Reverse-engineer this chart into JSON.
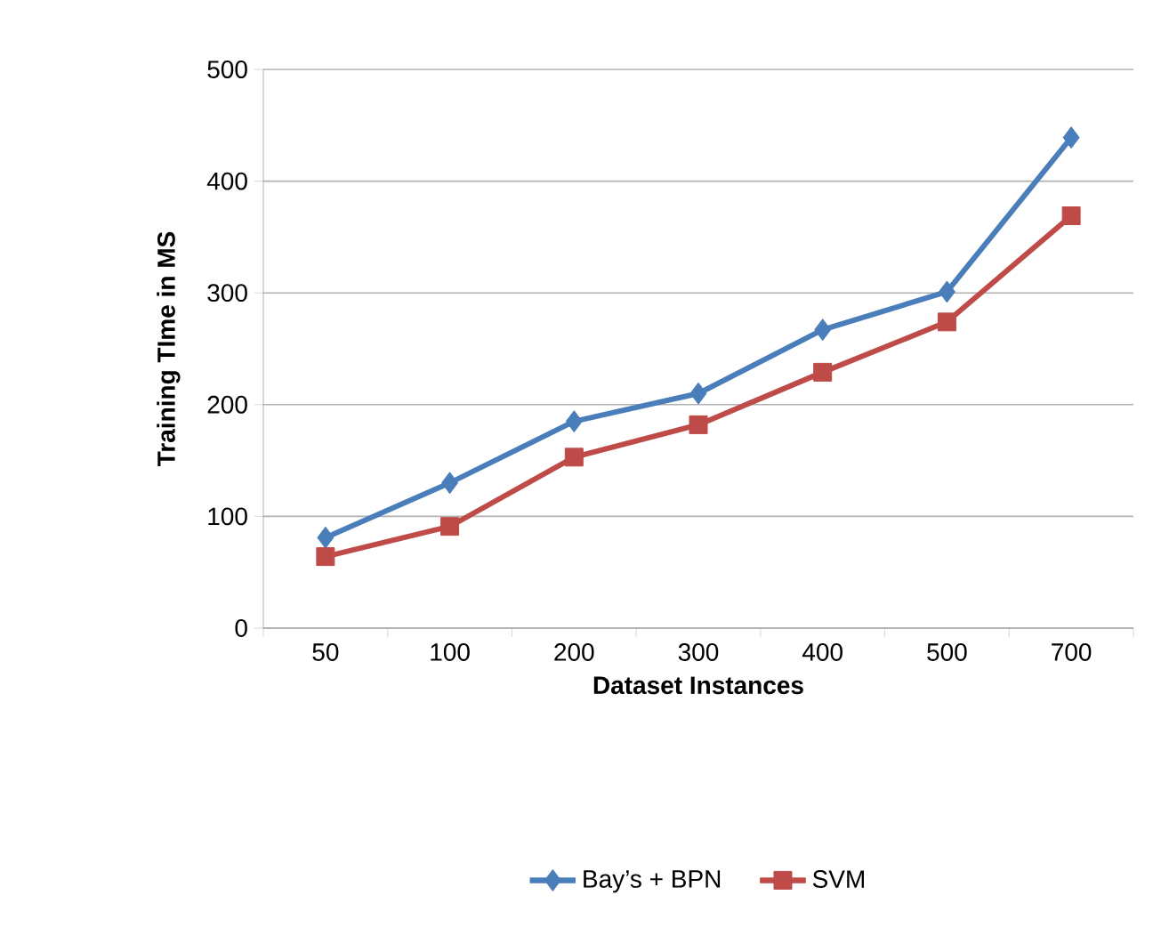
{
  "chart_data": {
    "type": "line",
    "xlabel": "Dataset Instances",
    "ylabel": "Training TIme in MS",
    "categories": [
      "50",
      "100",
      "200",
      "300",
      "400",
      "500",
      "700"
    ],
    "series": [
      {
        "name": "Bay’s + BPN",
        "color": "#4a7ebb",
        "marker": "diamond",
        "values": [
          81,
          130,
          185,
          210,
          267,
          301,
          439
        ]
      },
      {
        "name": "SVM",
        "color": "#be4b48",
        "marker": "square",
        "values": [
          64,
          91,
          153,
          182,
          229,
          274,
          369
        ]
      }
    ],
    "ylim": [
      0,
      500
    ],
    "yticks": [
      0,
      100,
      200,
      300,
      400,
      500
    ],
    "grid": "y",
    "legend": "bottom",
    "line_style": "solid"
  }
}
